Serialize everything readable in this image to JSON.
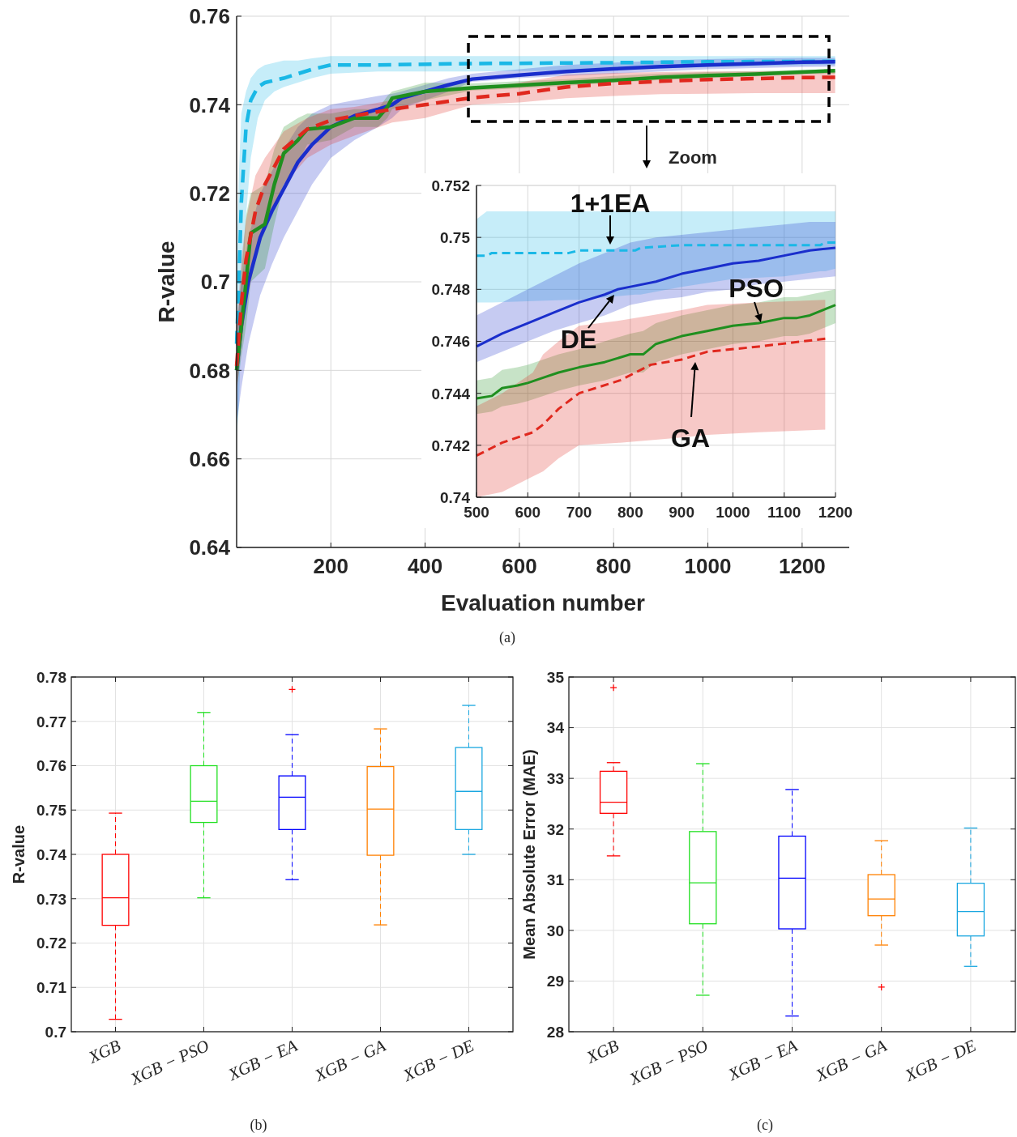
{
  "chart_data": [
    {
      "type": "line",
      "xlabel": "Evaluation number",
      "ylabel": "R-value",
      "xlim": [
        0,
        1300
      ],
      "ylim": [
        0.64,
        0.76
      ],
      "xticks": [
        200,
        400,
        600,
        800,
        1000,
        1200
      ],
      "yticks": [
        0.64,
        0.66,
        0.68,
        0.7,
        0.72,
        0.74,
        0.76
      ],
      "grid": true,
      "line_style": "solid",
      "annotations": [
        "Zoom",
        "(a)"
      ],
      "series": [
        {
          "color": "#1ab8e6",
          "line_style": "dashed",
          "x": [
            0,
            5,
            10,
            20,
            30,
            45,
            60,
            80,
            100,
            130,
            160,
            200,
            300,
            500,
            800,
            1000,
            1270
          ],
          "values": [
            0.686,
            0.7,
            0.718,
            0.735,
            0.741,
            0.744,
            0.745,
            0.7455,
            0.746,
            0.747,
            0.748,
            0.749,
            0.749,
            0.7493,
            0.7495,
            0.7497,
            0.7498
          ],
          "lower": [
            0.665,
            0.672,
            0.69,
            0.715,
            0.728,
            0.737,
            0.741,
            0.743,
            0.744,
            0.745,
            0.746,
            0.747,
            0.7475,
            0.7475,
            0.7478,
            0.7485,
            0.749
          ],
          "upper": [
            0.705,
            0.725,
            0.738,
            0.743,
            0.746,
            0.748,
            0.749,
            0.7495,
            0.75,
            0.75,
            0.7505,
            0.751,
            0.751,
            0.751,
            0.751,
            0.751,
            0.751
          ]
        },
        {
          "color": "#1a2ecc",
          "x": [
            0,
            10,
            25,
            50,
            75,
            100,
            130,
            160,
            200,
            250,
            300,
            330,
            350,
            400,
            450,
            500,
            600,
            700,
            800,
            900,
            1000,
            1100,
            1200,
            1270
          ],
          "values": [
            0.68,
            0.69,
            0.7,
            0.71,
            0.716,
            0.721,
            0.727,
            0.731,
            0.735,
            0.7375,
            0.739,
            0.74,
            0.7415,
            0.743,
            0.7445,
            0.7458,
            0.7467,
            0.7475,
            0.7481,
            0.7486,
            0.749,
            0.7493,
            0.7496,
            0.7497
          ],
          "lower": [
            0.668,
            0.676,
            0.686,
            0.697,
            0.704,
            0.71,
            0.716,
            0.722,
            0.728,
            0.732,
            0.735,
            0.737,
            0.739,
            0.741,
            0.743,
            0.7452,
            0.746,
            0.7465,
            0.747,
            0.7475,
            0.748,
            0.7483,
            0.7485,
            0.7486
          ],
          "upper": [
            0.69,
            0.7,
            0.71,
            0.72,
            0.725,
            0.73,
            0.735,
            0.738,
            0.74,
            0.741,
            0.742,
            0.7425,
            0.743,
            0.7445,
            0.746,
            0.747,
            0.748,
            0.749,
            0.7495,
            0.75,
            0.7503,
            0.7505,
            0.7506,
            0.7506
          ]
        },
        {
          "color": "#1f8f1f",
          "x": [
            0,
            20,
            30,
            60,
            80,
            100,
            130,
            150,
            200,
            250,
            300,
            320,
            330,
            400,
            500,
            600,
            700,
            800,
            900,
            1000,
            1100,
            1200,
            1270
          ],
          "values": [
            0.68,
            0.7,
            0.711,
            0.713,
            0.722,
            0.729,
            0.732,
            0.7345,
            0.735,
            0.737,
            0.737,
            0.7395,
            0.7415,
            0.743,
            0.7438,
            0.7444,
            0.745,
            0.7455,
            0.7462,
            0.7466,
            0.7469,
            0.7474,
            0.7477
          ],
          "lower": [
            0.676,
            0.69,
            0.7,
            0.703,
            0.713,
            0.722,
            0.727,
            0.731,
            0.732,
            0.735,
            0.735,
            0.737,
            0.739,
            0.741,
            0.7432,
            0.7437,
            0.7443,
            0.745,
            0.7456,
            0.746,
            0.7464,
            0.7469,
            0.747
          ],
          "upper": [
            0.688,
            0.715,
            0.72,
            0.722,
            0.73,
            0.735,
            0.737,
            0.738,
            0.738,
            0.739,
            0.739,
            0.742,
            0.743,
            0.745,
            0.7448,
            0.7453,
            0.7458,
            0.7465,
            0.747,
            0.7474,
            0.7476,
            0.7479,
            0.748
          ]
        },
        {
          "color": "#e0281e",
          "line_style": "dashed",
          "x": [
            0,
            10,
            20,
            40,
            60,
            100,
            150,
            200,
            250,
            330,
            400,
            500,
            600,
            700,
            800,
            900,
            1000,
            1100,
            1180,
            1270
          ],
          "values": [
            0.681,
            0.695,
            0.705,
            0.716,
            0.722,
            0.73,
            0.7345,
            0.7365,
            0.7375,
            0.739,
            0.74,
            0.7416,
            0.7425,
            0.744,
            0.7448,
            0.7453,
            0.7457,
            0.7459,
            0.7461,
            0.7462
          ],
          "lower": [
            0.675,
            0.685,
            0.695,
            0.705,
            0.713,
            0.722,
            0.728,
            0.731,
            0.733,
            0.736,
            0.737,
            0.74,
            0.7405,
            0.7415,
            0.742,
            0.7424,
            0.7425,
            0.7426,
            0.7426,
            0.7426
          ],
          "upper": [
            0.69,
            0.705,
            0.714,
            0.724,
            0.728,
            0.734,
            0.737,
            0.739,
            0.7395,
            0.741,
            0.7425,
            0.7435,
            0.745,
            0.7468,
            0.7472,
            0.7474,
            0.7475,
            0.7475,
            0.7475,
            0.7475
          ]
        }
      ]
    },
    {
      "type": "line",
      "xlim": [
        500,
        1200
      ],
      "ylim": [
        0.74,
        0.752
      ],
      "xticks": [
        500,
        600,
        700,
        800,
        900,
        1000,
        1100,
        1200
      ],
      "yticks": [
        0.74,
        0.742,
        0.744,
        0.746,
        0.748,
        0.75,
        0.752
      ],
      "grid": true,
      "line_style": "solid",
      "series": [
        {
          "name": "1+1EA",
          "color": "#1ab8e6",
          "line_style": "dashed",
          "x": [
            500,
            520,
            530,
            680,
            700,
            810,
            820,
            900,
            1000,
            1100,
            1170,
            1180,
            1200
          ],
          "values": [
            0.7493,
            0.7493,
            0.7494,
            0.7494,
            0.7495,
            0.7495,
            0.7496,
            0.7497,
            0.7497,
            0.7497,
            0.7497,
            0.7498,
            0.7498
          ],
          "lower": [
            0.7475,
            0.7475,
            0.7475,
            0.7476,
            0.7476,
            0.7478,
            0.7478,
            0.7481,
            0.7484,
            0.7485,
            0.7487,
            0.7487,
            0.7488
          ],
          "upper": [
            0.7507,
            0.751,
            0.751,
            0.751,
            0.751,
            0.751,
            0.751,
            0.751,
            0.751,
            0.751,
            0.751,
            0.751,
            0.751
          ]
        },
        {
          "name": "DE",
          "color": "#1a2ecc",
          "x": [
            500,
            550,
            600,
            650,
            700,
            750,
            775,
            800,
            850,
            900,
            950,
            1000,
            1050,
            1100,
            1150,
            1200
          ],
          "values": [
            0.7458,
            0.7463,
            0.7467,
            0.7471,
            0.7475,
            0.7478,
            0.748,
            0.7481,
            0.7483,
            0.7486,
            0.7488,
            0.749,
            0.7491,
            0.7493,
            0.7495,
            0.7496
          ],
          "lower": [
            0.7452,
            0.7456,
            0.746,
            0.7464,
            0.7467,
            0.747,
            0.7472,
            0.7474,
            0.7476,
            0.7477,
            0.7479,
            0.748,
            0.7482,
            0.7483,
            0.7484,
            0.7485
          ],
          "upper": [
            0.747,
            0.7475,
            0.748,
            0.7485,
            0.749,
            0.7494,
            0.7496,
            0.7498,
            0.75,
            0.7501,
            0.7502,
            0.7503,
            0.7504,
            0.7505,
            0.7506,
            0.7506
          ]
        },
        {
          "name": "PSO",
          "color": "#1f8f1f",
          "x": [
            500,
            530,
            550,
            580,
            600,
            630,
            660,
            700,
            750,
            800,
            825,
            850,
            900,
            950,
            1000,
            1050,
            1100,
            1125,
            1150,
            1200
          ],
          "values": [
            0.7438,
            0.7439,
            0.7442,
            0.7443,
            0.7444,
            0.7446,
            0.7448,
            0.745,
            0.7452,
            0.7455,
            0.7455,
            0.7459,
            0.7462,
            0.7464,
            0.7466,
            0.7467,
            0.7469,
            0.7469,
            0.747,
            0.7474
          ],
          "lower": [
            0.7432,
            0.7433,
            0.7435,
            0.7436,
            0.7437,
            0.7439,
            0.7441,
            0.7443,
            0.7445,
            0.7448,
            0.7448,
            0.7452,
            0.7455,
            0.7457,
            0.7459,
            0.746,
            0.7462,
            0.7462,
            0.7463,
            0.7467
          ],
          "upper": [
            0.7445,
            0.7446,
            0.7449,
            0.745,
            0.7451,
            0.7453,
            0.7455,
            0.7457,
            0.746,
            0.7463,
            0.7464,
            0.7467,
            0.747,
            0.7472,
            0.7474,
            0.7475,
            0.7477,
            0.7477,
            0.7478,
            0.748
          ]
        },
        {
          "name": "GA",
          "color": "#e0281e",
          "line_style": "dashed",
          "x": [
            500,
            550,
            610,
            630,
            660,
            700,
            780,
            840,
            900,
            950,
            1050,
            1180
          ],
          "values": [
            0.7416,
            0.7421,
            0.7425,
            0.7428,
            0.7434,
            0.744,
            0.7445,
            0.7451,
            0.7453,
            0.7456,
            0.7458,
            0.7461
          ],
          "lower": [
            0.74,
            0.7402,
            0.7408,
            0.741,
            0.7415,
            0.742,
            0.7421,
            0.7422,
            0.7423,
            0.7424,
            0.7425,
            0.7426
          ],
          "upper": [
            0.7435,
            0.744,
            0.7448,
            0.7455,
            0.746,
            0.7466,
            0.7468,
            0.747,
            0.7472,
            0.7474,
            0.7475,
            0.7476
          ]
        }
      ]
    },
    {
      "type": "box",
      "ylabel": "R-value",
      "categories": [
        "XGB",
        "XGB − PSO",
        "XGB − EA",
        "XGB − GA",
        "XGB − DE"
      ],
      "ylim": [
        0.7,
        0.78
      ],
      "yticks": [
        0.7,
        0.71,
        0.72,
        0.73,
        0.74,
        0.75,
        0.76,
        0.77,
        0.78
      ],
      "grid": true,
      "colors": [
        "#ff0000",
        "#22e022",
        "#0000ff",
        "#ff8000",
        "#1aa7e0"
      ],
      "annotations": [
        "(b)"
      ],
      "boxes": [
        {
          "low": 0.7028,
          "q1": 0.724,
          "median": 0.7302,
          "q3": 0.74,
          "high": 0.7493
        },
        {
          "low": 0.7302,
          "q1": 0.7472,
          "median": 0.752,
          "q3": 0.76,
          "high": 0.772
        },
        {
          "low": 0.7343,
          "q1": 0.7456,
          "median": 0.7529,
          "q3": 0.7577,
          "high": 0.767
        },
        {
          "low": 0.7241,
          "q1": 0.7398,
          "median": 0.7502,
          "q3": 0.7598,
          "high": 0.7683
        },
        {
          "low": 0.74,
          "q1": 0.7456,
          "median": 0.7542,
          "q3": 0.7641,
          "high": 0.7736
        }
      ],
      "series": [
        {
          "type": "scatter",
          "marker": "cross",
          "color": "#ff0000",
          "x": [
            "XGB − EA"
          ],
          "values": [
            0.7772
          ]
        }
      ]
    },
    {
      "type": "box",
      "ylabel": "Mean Absolute Error (MAE)",
      "categories": [
        "XGB",
        "XGB − PSO",
        "XGB − EA",
        "XGB − GA",
        "XGB − DE"
      ],
      "ylim": [
        28,
        35
      ],
      "yticks": [
        28,
        29,
        30,
        31,
        32,
        33,
        34,
        35
      ],
      "grid": true,
      "colors": [
        "#ff0000",
        "#22e022",
        "#0000ff",
        "#ff8000",
        "#1aa7e0"
      ],
      "annotations": [
        "(c)"
      ],
      "boxes": [
        {
          "low": 31.47,
          "q1": 32.31,
          "median": 32.53,
          "q3": 33.14,
          "high": 33.31
        },
        {
          "low": 28.72,
          "q1": 30.13,
          "median": 30.94,
          "q3": 31.95,
          "high": 33.29
        },
        {
          "low": 28.31,
          "q1": 30.03,
          "median": 31.03,
          "q3": 31.86,
          "high": 32.78
        },
        {
          "low": 29.71,
          "q1": 30.29,
          "median": 30.62,
          "q3": 31.1,
          "high": 31.77
        },
        {
          "low": 29.29,
          "q1": 29.89,
          "median": 30.37,
          "q3": 30.93,
          "high": 32.02
        }
      ],
      "series": [
        {
          "type": "scatter",
          "marker": "cross",
          "color": "#ff0000",
          "x": [
            "XGB",
            "XGB − GA"
          ],
          "values": [
            34.79,
            28.88
          ]
        }
      ]
    }
  ]
}
